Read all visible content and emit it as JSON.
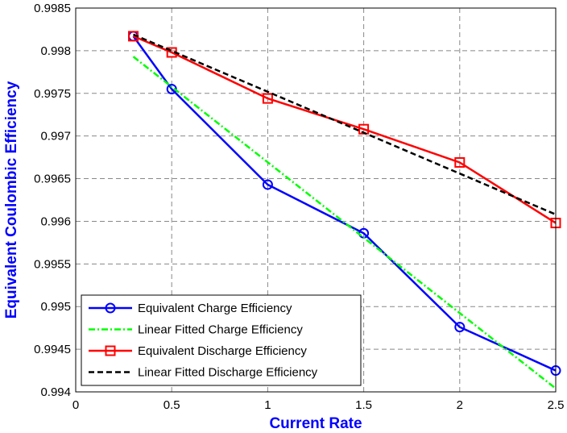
{
  "chart_data": {
    "type": "line",
    "title": "",
    "xlabel": "Current Rate",
    "ylabel": "Equivalent Coulombic Efficiency",
    "xlim": [
      0,
      2.5
    ],
    "ylim": [
      0.994,
      0.9985
    ],
    "xticks": [
      "0",
      "0.5",
      "1",
      "1.5",
      "2",
      "2.5"
    ],
    "yticks": [
      "0.994",
      "0.9945",
      "0.995",
      "0.9955",
      "0.996",
      "0.9965",
      "0.997",
      "0.9975",
      "0.998",
      "0.9985"
    ],
    "grid": true,
    "legend_position": "bottom-left",
    "series": [
      {
        "name": "Equivalent Charge Efficiency",
        "color": "#0000ff",
        "style": "solid",
        "marker": "circle",
        "x": [
          0.3,
          0.5,
          1,
          1.5,
          2,
          2.5
        ],
        "y": [
          0.99817,
          0.99755,
          0.99643,
          0.99586,
          0.99476,
          0.99425
        ]
      },
      {
        "name": "Linear Fitted Charge Efficiency",
        "color": "#00ff00",
        "style": "dashdot",
        "marker": "none",
        "x": [
          0.3,
          2.5
        ],
        "y": [
          0.99793,
          0.99404
        ]
      },
      {
        "name": "Equivalent Discharge Efficiency",
        "color": "#ff0000",
        "style": "solid",
        "marker": "square",
        "x": [
          0.3,
          0.5,
          1,
          1.5,
          2,
          2.5
        ],
        "y": [
          0.99817,
          0.99798,
          0.99744,
          0.99708,
          0.99669,
          0.99598
        ]
      },
      {
        "name": "Linear Fitted Discharge Efficiency",
        "color": "#000000",
        "style": "dashed",
        "marker": "none",
        "x": [
          0.3,
          2.5
        ],
        "y": [
          0.99819,
          0.99608
        ]
      }
    ]
  }
}
